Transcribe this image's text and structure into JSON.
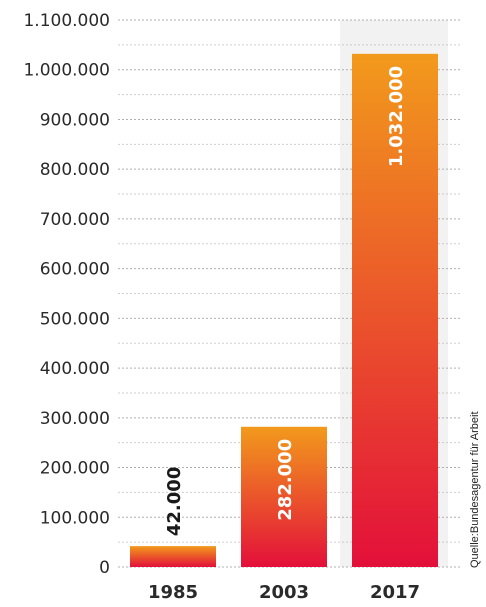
{
  "chart_data": {
    "type": "bar",
    "categories": [
      "1985",
      "2003",
      "2017"
    ],
    "values": [
      42000,
      282000,
      1032000
    ],
    "data_labels": [
      "42.000",
      "282.000",
      "1.032.000"
    ],
    "ylim": [
      0,
      1100000
    ],
    "yticks": [
      0,
      100000,
      200000,
      300000,
      400000,
      500000,
      600000,
      700000,
      800000,
      900000,
      1000000,
      1100000
    ],
    "ytick_labels": [
      "0",
      "100.000",
      "200.000",
      "300.000",
      "400.000",
      "500.000",
      "600.000",
      "700.000",
      "800.000",
      "900.000",
      "1.000.000",
      "1.100.000"
    ],
    "grid": true,
    "source": "Quelle:Bundesagentur für Arbeit",
    "colors": {
      "bar_top": "#f29a1c",
      "bar_bottom": "#e3103a",
      "grid": "#b0b0b0",
      "label_dark": "#1a1a1a",
      "label_light": "#ffffff"
    }
  }
}
